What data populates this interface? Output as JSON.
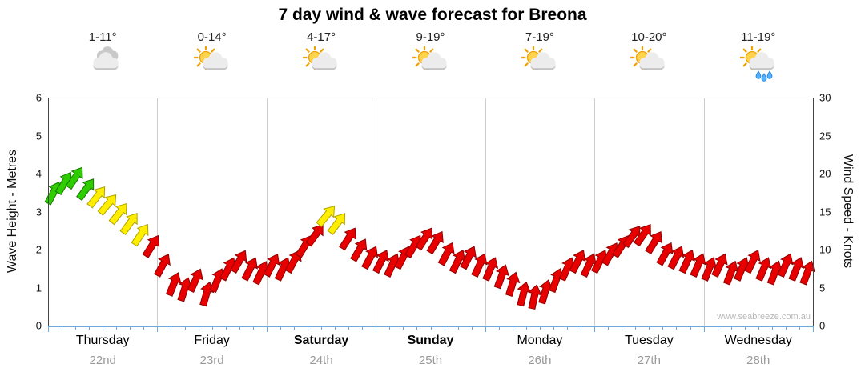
{
  "title": "7 day wind & wave forecast for Breona",
  "watermark": "www.seabreeze.com.au",
  "axes": {
    "left_label": "Wave Height - Metres",
    "right_label": "Wind Speed - Knots",
    "left_ticks": [
      0,
      1,
      2,
      3,
      4,
      5,
      6
    ],
    "right_ticks": [
      0,
      5,
      10,
      15,
      20,
      25,
      30
    ]
  },
  "days": [
    {
      "name": "Thursday",
      "date": "22nd",
      "temp": "1-11°",
      "icon": "cloudy",
      "bold": false
    },
    {
      "name": "Friday",
      "date": "23rd",
      "temp": "0-14°",
      "icon": "sun-cloud",
      "bold": false
    },
    {
      "name": "Saturday",
      "date": "24th",
      "temp": "4-17°",
      "icon": "sun-cloud",
      "bold": true
    },
    {
      "name": "Sunday",
      "date": "25th",
      "temp": "9-19°",
      "icon": "sun-cloud",
      "bold": true
    },
    {
      "name": "Monday",
      "date": "26th",
      "temp": "7-19°",
      "icon": "sun-cloud",
      "bold": false
    },
    {
      "name": "Tuesday",
      "date": "27th",
      "temp": "10-20°",
      "icon": "sun-cloud",
      "bold": false
    },
    {
      "name": "Wednesday",
      "date": "28th",
      "temp": "11-19°",
      "icon": "sun-cloud-rain",
      "bold": false
    }
  ],
  "chart_data": {
    "type": "scatter",
    "subtype": "wind-direction-arrows",
    "title": "7 day wind & wave forecast for Breona",
    "ylabel_left": "Wave Height - Metres",
    "ylabel_right": "Wind Speed - Knots",
    "ylim_left_metres": [
      0,
      6
    ],
    "ylim_right_knots": [
      0,
      30
    ],
    "grid": "vertical-day-boundaries",
    "x_categories": [
      "Thursday 22nd",
      "Friday 23rd",
      "Saturday 24th",
      "Sunday 25th",
      "Monday 26th",
      "Tuesday 27th",
      "Wednesday 28th"
    ],
    "points_per_day": 10,
    "point_format": [
      "wind_speed_knots",
      "color_key",
      "direction_deg"
    ],
    "colors": {
      "g": "#2ecc00",
      "y": "#ffee00",
      "r": "#e80000"
    },
    "stroke_colors": {
      "g": "#157800",
      "y": "#b0a300",
      "r": "#8f0000"
    },
    "points": [
      [
        17.5,
        "g",
        28
      ],
      [
        18.8,
        "g",
        31
      ],
      [
        19.5,
        "g",
        34
      ],
      [
        18.0,
        "g",
        36
      ],
      [
        17.0,
        "y",
        38
      ],
      [
        16.0,
        "y",
        40
      ],
      [
        14.8,
        "y",
        38
      ],
      [
        13.5,
        "y",
        36
      ],
      [
        12.0,
        "y",
        34
      ],
      [
        10.5,
        "r",
        32
      ],
      [
        8.0,
        "r",
        28
      ],
      [
        5.5,
        "r",
        22
      ],
      [
        4.8,
        "r",
        18
      ],
      [
        6.0,
        "r",
        24
      ],
      [
        4.2,
        "r",
        16
      ],
      [
        6.0,
        "r",
        22
      ],
      [
        7.5,
        "r",
        27
      ],
      [
        8.5,
        "r",
        30
      ],
      [
        7.5,
        "r",
        27
      ],
      [
        7.0,
        "r",
        25
      ],
      [
        8.0,
        "r",
        27
      ],
      [
        7.5,
        "r",
        25
      ],
      [
        8.5,
        "r",
        28
      ],
      [
        10.5,
        "r",
        32
      ],
      [
        12.0,
        "r",
        36
      ],
      [
        14.5,
        "y",
        40
      ],
      [
        13.5,
        "y",
        37
      ],
      [
        11.5,
        "r",
        33
      ],
      [
        10.0,
        "r",
        30
      ],
      [
        9.0,
        "r",
        28
      ],
      [
        8.5,
        "r",
        27
      ],
      [
        8.0,
        "r",
        25
      ],
      [
        9.0,
        "r",
        28
      ],
      [
        10.5,
        "r",
        31
      ],
      [
        11.5,
        "r",
        33
      ],
      [
        11.0,
        "r",
        31
      ],
      [
        9.5,
        "r",
        28
      ],
      [
        8.5,
        "r",
        26
      ],
      [
        9.0,
        "r",
        27
      ],
      [
        8.0,
        "r",
        25
      ],
      [
        7.5,
        "r",
        23
      ],
      [
        6.5,
        "r",
        20
      ],
      [
        5.5,
        "r",
        17
      ],
      [
        4.2,
        "r",
        14
      ],
      [
        3.8,
        "r",
        12
      ],
      [
        4.5,
        "r",
        16
      ],
      [
        6.0,
        "r",
        20
      ],
      [
        7.5,
        "r",
        24
      ],
      [
        8.5,
        "r",
        27
      ],
      [
        8.0,
        "r",
        25
      ],
      [
        8.5,
        "r",
        27
      ],
      [
        9.5,
        "r",
        30
      ],
      [
        10.5,
        "r",
        33
      ],
      [
        11.8,
        "r",
        36
      ],
      [
        12.0,
        "r",
        35
      ],
      [
        11.0,
        "r",
        32
      ],
      [
        9.5,
        "r",
        29
      ],
      [
        9.0,
        "r",
        27
      ],
      [
        8.5,
        "r",
        25
      ],
      [
        8.0,
        "r",
        24
      ],
      [
        7.5,
        "r",
        22
      ],
      [
        8.0,
        "r",
        25
      ],
      [
        7.0,
        "r",
        21
      ],
      [
        7.5,
        "r",
        23
      ],
      [
        8.5,
        "r",
        26
      ],
      [
        7.5,
        "r",
        23
      ],
      [
        7.0,
        "r",
        20
      ],
      [
        8.0,
        "r",
        24
      ],
      [
        7.5,
        "r",
        22
      ],
      [
        7.0,
        "r",
        21
      ]
    ]
  }
}
